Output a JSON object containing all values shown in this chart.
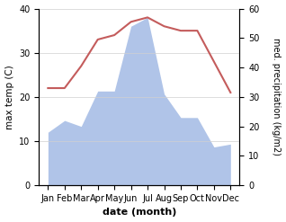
{
  "months": [
    "Jan",
    "Feb",
    "Mar",
    "Apr",
    "May",
    "Jun",
    "Jul",
    "Aug",
    "Sep",
    "Oct",
    "Nov",
    "Dec"
  ],
  "temperature": [
    22,
    22,
    27,
    33,
    34,
    37,
    38,
    36,
    35,
    35,
    28,
    21
  ],
  "precipitation": [
    18,
    22,
    20,
    32,
    32,
    54,
    57,
    31,
    23,
    23,
    13,
    14
  ],
  "temp_color": "#c45c5c",
  "precip_color": "#b0c4e8",
  "ylabel_left": "max temp (C)",
  "ylabel_right": "med. precipitation (kg/m2)",
  "xlabel": "date (month)",
  "ylim_left": [
    0,
    40
  ],
  "ylim_right": [
    0,
    60
  ],
  "yticks_left": [
    0,
    10,
    20,
    30,
    40
  ],
  "yticks_right": [
    0,
    10,
    20,
    30,
    40,
    50,
    60
  ],
  "bg_color": "#ffffff",
  "grid_color": "#d0d0d0"
}
